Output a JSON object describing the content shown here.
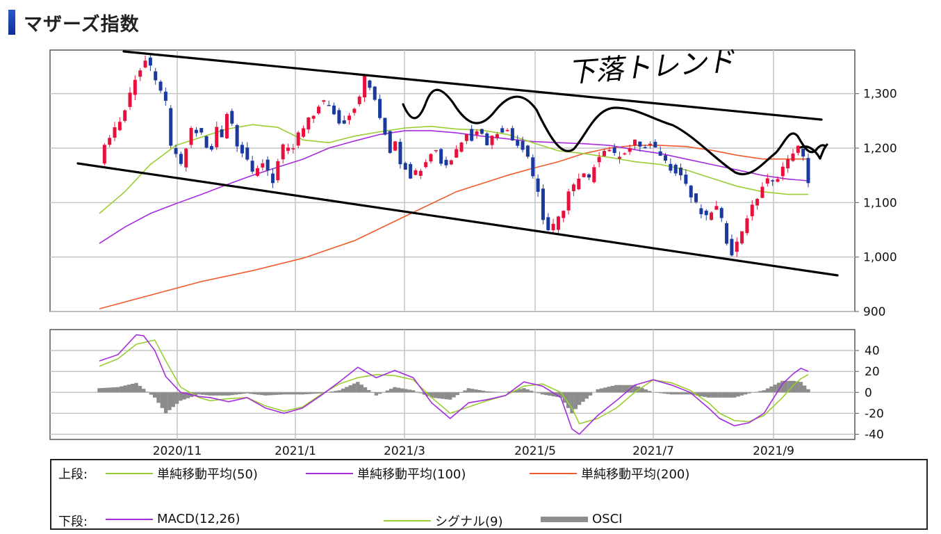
{
  "title": "マザーズ指数",
  "annotation_text": "下落トレンド",
  "colors": {
    "up": "#e8103c",
    "down": "#1a3aa0",
    "ma50": "#9acd32",
    "ma100": "#a52bdc",
    "ma200": "#f05a2a",
    "macd": "#a52bdc",
    "signal": "#9acd32",
    "osci": "#8c8c8c",
    "grid": "#c4c4c4",
    "ink": "#000000"
  },
  "chart_data": [
    {
      "type": "candlestick",
      "name": "price",
      "ylim": [
        900,
        1380
      ],
      "y_ticks": [
        "1,300",
        "1,200",
        "1,100",
        "1,000",
        "900"
      ],
      "y_tick_values": [
        1300,
        1200,
        1100,
        1000,
        900
      ],
      "x_tick_labels": [
        "2020/11",
        "2021/1",
        "2021/3",
        "2021/5",
        "2021/7",
        "2021/9"
      ],
      "grid": true,
      "close_path": [
        [
          0,
          1175
        ],
        [
          2,
          1225
        ],
        [
          4,
          1250
        ],
        [
          5,
          1270
        ],
        [
          7,
          1330
        ],
        [
          8,
          1345
        ],
        [
          9,
          1360
        ],
        [
          10,
          1345
        ],
        [
          11,
          1320
        ],
        [
          12,
          1310
        ],
        [
          13,
          1280
        ],
        [
          14,
          1200
        ],
        [
          15,
          1190
        ],
        [
          16,
          1165
        ],
        [
          17,
          1200
        ],
        [
          18,
          1235
        ],
        [
          19,
          1230
        ],
        [
          20,
          1225
        ],
        [
          21,
          1200
        ],
        [
          22,
          1195
        ],
        [
          23,
          1240
        ],
        [
          24,
          1225
        ],
        [
          25,
          1265
        ],
        [
          26,
          1245
        ],
        [
          27,
          1210
        ],
        [
          28,
          1195
        ],
        [
          29,
          1180
        ],
        [
          30,
          1150
        ],
        [
          31,
          1160
        ],
        [
          32,
          1175
        ],
        [
          33,
          1160
        ],
        [
          34,
          1140
        ],
        [
          35,
          1175
        ],
        [
          36,
          1200
        ],
        [
          37,
          1195
        ],
        [
          38,
          1200
        ],
        [
          39,
          1225
        ],
        [
          40,
          1235
        ],
        [
          41,
          1250
        ],
        [
          42,
          1260
        ],
        [
          43,
          1280
        ],
        [
          44,
          1285
        ],
        [
          45,
          1275
        ],
        [
          46,
          1265
        ],
        [
          47,
          1245
        ],
        [
          48,
          1250
        ],
        [
          49,
          1265
        ],
        [
          50,
          1275
        ],
        [
          51,
          1300
        ],
        [
          52,
          1330
        ],
        [
          53,
          1310
        ],
        [
          54,
          1290
        ],
        [
          55,
          1250
        ],
        [
          56,
          1225
        ],
        [
          57,
          1195
        ],
        [
          58,
          1215
        ],
        [
          59,
          1175
        ],
        [
          60,
          1165
        ],
        [
          61,
          1150
        ],
        [
          62,
          1155
        ],
        [
          63,
          1165
        ],
        [
          64,
          1180
        ],
        [
          65,
          1195
        ],
        [
          66,
          1195
        ],
        [
          67,
          1175
        ],
        [
          68,
          1170
        ],
        [
          69,
          1180
        ],
        [
          70,
          1200
        ],
        [
          71,
          1210
        ],
        [
          72,
          1230
        ],
        [
          73,
          1220
        ],
        [
          74,
          1235
        ],
        [
          75,
          1225
        ],
        [
          76,
          1210
        ],
        [
          77,
          1220
        ],
        [
          78,
          1230
        ],
        [
          79,
          1235
        ],
        [
          80,
          1230
        ],
        [
          81,
          1215
        ],
        [
          82,
          1210
        ],
        [
          83,
          1200
        ],
        [
          84,
          1190
        ],
        [
          85,
          1150
        ],
        [
          86,
          1120
        ],
        [
          87,
          1070
        ],
        [
          88,
          1050
        ],
        [
          89,
          1055
        ],
        [
          90,
          1070
        ],
        [
          91,
          1090
        ],
        [
          92,
          1120
        ],
        [
          93,
          1130
        ],
        [
          94,
          1140
        ],
        [
          95,
          1150
        ],
        [
          96,
          1140
        ],
        [
          97,
          1170
        ],
        [
          98,
          1190
        ],
        [
          99,
          1195
        ],
        [
          100,
          1200
        ],
        [
          101,
          1185
        ],
        [
          102,
          1190
        ],
        [
          103,
          1195
        ],
        [
          104,
          1200
        ],
        [
          105,
          1210
        ],
        [
          106,
          1205
        ],
        [
          107,
          1200
        ],
        [
          108,
          1205
        ],
        [
          109,
          1195
        ],
        [
          110,
          1190
        ],
        [
          111,
          1175
        ],
        [
          112,
          1165
        ],
        [
          113,
          1160
        ],
        [
          114,
          1150
        ],
        [
          115,
          1135
        ],
        [
          116,
          1110
        ],
        [
          117,
          1095
        ],
        [
          118,
          1080
        ],
        [
          119,
          1070
        ],
        [
          120,
          1085
        ],
        [
          121,
          1090
        ],
        [
          122,
          1065
        ],
        [
          123,
          1030
        ],
        [
          124,
          1010
        ],
        [
          125,
          1025
        ],
        [
          126,
          1050
        ],
        [
          127,
          1075
        ],
        [
          128,
          1090
        ],
        [
          129,
          1110
        ],
        [
          130,
          1130
        ],
        [
          131,
          1140
        ],
        [
          132,
          1135
        ],
        [
          133,
          1150
        ],
        [
          134,
          1165
        ],
        [
          135,
          1175
        ],
        [
          136,
          1195
        ],
        [
          137,
          1200
        ],
        [
          138,
          1180
        ],
        [
          139,
          1140
        ]
      ],
      "ma50_path": [
        [
          0,
          1080
        ],
        [
          5,
          1120
        ],
        [
          10,
          1170
        ],
        [
          15,
          1205
        ],
        [
          20,
          1220
        ],
        [
          25,
          1235
        ],
        [
          30,
          1243
        ],
        [
          35,
          1238
        ],
        [
          40,
          1215
        ],
        [
          45,
          1210
        ],
        [
          50,
          1222
        ],
        [
          55,
          1230
        ],
        [
          60,
          1237
        ],
        [
          65,
          1240
        ],
        [
          70,
          1235
        ],
        [
          75,
          1233
        ],
        [
          80,
          1225
        ],
        [
          85,
          1210
        ],
        [
          90,
          1195
        ],
        [
          95,
          1190
        ],
        [
          100,
          1183
        ],
        [
          105,
          1175
        ],
        [
          110,
          1170
        ],
        [
          115,
          1160
        ],
        [
          120,
          1145
        ],
        [
          125,
          1130
        ],
        [
          130,
          1120
        ],
        [
          135,
          1115
        ],
        [
          139,
          1115
        ]
      ],
      "ma100_path": [
        [
          0,
          1025
        ],
        [
          5,
          1055
        ],
        [
          10,
          1080
        ],
        [
          15,
          1098
        ],
        [
          20,
          1115
        ],
        [
          25,
          1133
        ],
        [
          30,
          1150
        ],
        [
          35,
          1165
        ],
        [
          40,
          1180
        ],
        [
          45,
          1200
        ],
        [
          50,
          1213
        ],
        [
          55,
          1225
        ],
        [
          60,
          1232
        ],
        [
          65,
          1232
        ],
        [
          70,
          1228
        ],
        [
          75,
          1222
        ],
        [
          80,
          1217
        ],
        [
          85,
          1212
        ],
        [
          90,
          1210
        ],
        [
          95,
          1208
        ],
        [
          100,
          1205
        ],
        [
          105,
          1197
        ],
        [
          110,
          1190
        ],
        [
          115,
          1180
        ],
        [
          120,
          1170
        ],
        [
          125,
          1160
        ],
        [
          130,
          1150
        ],
        [
          135,
          1143
        ],
        [
          139,
          1140
        ]
      ],
      "ma200_path": [
        [
          0,
          905
        ],
        [
          10,
          930
        ],
        [
          20,
          955
        ],
        [
          30,
          975
        ],
        [
          40,
          998
        ],
        [
          50,
          1030
        ],
        [
          60,
          1075
        ],
        [
          70,
          1120
        ],
        [
          80,
          1150
        ],
        [
          85,
          1163
        ],
        [
          90,
          1175
        ],
        [
          95,
          1190
        ],
        [
          100,
          1200
        ],
        [
          105,
          1205
        ],
        [
          110,
          1205
        ],
        [
          115,
          1203
        ],
        [
          120,
          1196
        ],
        [
          125,
          1187
        ],
        [
          130,
          1180
        ],
        [
          135,
          1180
        ],
        [
          139,
          1180
        ]
      ]
    },
    {
      "type": "macd",
      "name": "indicator",
      "ylim": [
        -45,
        60
      ],
      "y_ticks": [
        "40",
        "20",
        "0",
        "-20",
        "-40"
      ],
      "y_tick_values": [
        40,
        20,
        0,
        -20,
        -40
      ],
      "x_tick_labels": [
        "2020/11",
        "2021/1",
        "2021/3",
        "2021/5",
        "2021/7",
        "2021/9"
      ],
      "grid": true,
      "macd_path": [
        [
          0,
          30
        ],
        [
          5,
          36
        ],
        [
          10,
          55
        ],
        [
          12,
          54
        ],
        [
          15,
          40
        ],
        [
          18,
          15
        ],
        [
          22,
          0
        ],
        [
          27,
          -4
        ],
        [
          30,
          -5
        ],
        [
          35,
          -9
        ],
        [
          40,
          -5
        ],
        [
          45,
          -15
        ],
        [
          50,
          -20
        ],
        [
          55,
          -15
        ],
        [
          60,
          -3
        ],
        [
          65,
          10
        ],
        [
          70,
          24
        ],
        [
          75,
          14
        ],
        [
          80,
          21
        ],
        [
          85,
          14
        ],
        [
          90,
          -10
        ],
        [
          95,
          -25
        ],
        [
          100,
          -10
        ],
        [
          105,
          -7
        ],
        [
          110,
          -3
        ],
        [
          115,
          10
        ],
        [
          120,
          6
        ],
        [
          125,
          -5
        ],
        [
          128,
          -35
        ],
        [
          130,
          -40
        ],
        [
          135,
          -22
        ],
        [
          140,
          -8
        ],
        [
          145,
          7
        ],
        [
          150,
          12
        ],
        [
          155,
          7
        ],
        [
          160,
          0
        ],
        [
          165,
          -15
        ],
        [
          168,
          -25
        ],
        [
          172,
          -32
        ],
        [
          176,
          -29
        ],
        [
          180,
          -20
        ],
        [
          185,
          8
        ],
        [
          188,
          18
        ],
        [
          190,
          23
        ],
        [
          192,
          20
        ]
      ],
      "signal_path": [
        [
          0,
          25
        ],
        [
          5,
          32
        ],
        [
          10,
          46
        ],
        [
          15,
          50
        ],
        [
          18,
          30
        ],
        [
          22,
          5
        ],
        [
          27,
          -5
        ],
        [
          30,
          -8
        ],
        [
          35,
          -6
        ],
        [
          40,
          -5
        ],
        [
          45,
          -13
        ],
        [
          50,
          -18
        ],
        [
          55,
          -14
        ],
        [
          60,
          -2
        ],
        [
          65,
          8
        ],
        [
          70,
          14
        ],
        [
          75,
          17
        ],
        [
          80,
          16
        ],
        [
          85,
          12
        ],
        [
          90,
          -5
        ],
        [
          95,
          -20
        ],
        [
          100,
          -14
        ],
        [
          105,
          -8
        ],
        [
          110,
          -3
        ],
        [
          115,
          6
        ],
        [
          120,
          8
        ],
        [
          125,
          0
        ],
        [
          128,
          -15
        ],
        [
          130,
          -30
        ],
        [
          135,
          -25
        ],
        [
          140,
          -15
        ],
        [
          145,
          0
        ],
        [
          150,
          12
        ],
        [
          155,
          9
        ],
        [
          160,
          2
        ],
        [
          165,
          -10
        ],
        [
          168,
          -20
        ],
        [
          172,
          -27
        ],
        [
          176,
          -28
        ],
        [
          180,
          -22
        ],
        [
          185,
          -5
        ],
        [
          188,
          7
        ],
        [
          190,
          13
        ],
        [
          192,
          17
        ]
      ],
      "osci_path": [
        [
          0,
          4
        ],
        [
          5,
          5
        ],
        [
          10,
          9
        ],
        [
          15,
          -5
        ],
        [
          18,
          -20
        ],
        [
          22,
          -8
        ],
        [
          27,
          -2
        ],
        [
          30,
          -3
        ],
        [
          35,
          -3
        ],
        [
          40,
          -1
        ],
        [
          45,
          -3
        ],
        [
          50,
          -2
        ],
        [
          55,
          -2
        ],
        [
          60,
          -1
        ],
        [
          65,
          2
        ],
        [
          70,
          10
        ],
        [
          75,
          -3
        ],
        [
          80,
          5
        ],
        [
          85,
          2
        ],
        [
          90,
          -5
        ],
        [
          95,
          -7
        ],
        [
          100,
          4
        ],
        [
          105,
          1
        ],
        [
          110,
          0
        ],
        [
          115,
          4
        ],
        [
          120,
          -2
        ],
        [
          125,
          -5
        ],
        [
          128,
          -20
        ],
        [
          130,
          -12
        ],
        [
          135,
          3
        ],
        [
          140,
          7
        ],
        [
          145,
          7
        ],
        [
          150,
          0
        ],
        [
          155,
          -2
        ],
        [
          160,
          -2
        ],
        [
          165,
          -5
        ],
        [
          168,
          -5
        ],
        [
          172,
          -5
        ],
        [
          176,
          -1
        ],
        [
          180,
          2
        ],
        [
          185,
          11
        ],
        [
          188,
          11
        ],
        [
          190,
          10
        ],
        [
          192,
          3
        ]
      ]
    }
  ],
  "legend": {
    "upper_head": "上段:",
    "lower_head": "下段:",
    "upper_items": [
      {
        "label": "単純移動平均(50)",
        "color": "#9acd32"
      },
      {
        "label": "単純移動平均(100)",
        "color": "#a52bdc"
      },
      {
        "label": "単純移動平均(200)",
        "color": "#f05a2a"
      }
    ],
    "lower_items": [
      {
        "label": "MACD(12,26)",
        "color": "#a52bdc"
      },
      {
        "label": "シグナル(9)",
        "color": "#9acd32"
      },
      {
        "label": "OSCI",
        "color": "#8c8c8c"
      }
    ]
  }
}
